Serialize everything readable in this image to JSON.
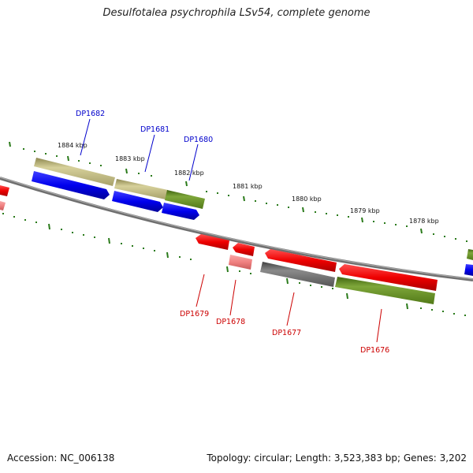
{
  "title": "Desulfotalea psychrophila LSv54, complete genome",
  "footer": {
    "accession": "Accession: NC_006138",
    "summary": "Topology: circular; Length: 3,523,383 bp; Genes: 3,202"
  },
  "scale_labels": [
    "1884 kbp",
    "1883 kbp",
    "1882 kbp",
    "1881 kbp",
    "1880 kbp",
    "1879 kbp",
    "1878 kbp"
  ],
  "gene_labels": {
    "forward": [
      "DP1682",
      "DP1681",
      "DP1680"
    ],
    "reverse": [
      "DP1679",
      "DP1678",
      "DP1677",
      "DP1676"
    ]
  },
  "colors": {
    "forward_label": "#0000cc",
    "reverse_label": "#cc0000",
    "tick": "#2a7a1a",
    "backbone": "#7f7f7f",
    "cds_forward": "#0000ee",
    "cds_reverse": "#ee0000",
    "cds_reverse_light": "#f08080",
    "feature_khaki": "#b8b27a",
    "feature_olive": "#5f8a1f",
    "feature_gray": "#6a6a6a"
  }
}
